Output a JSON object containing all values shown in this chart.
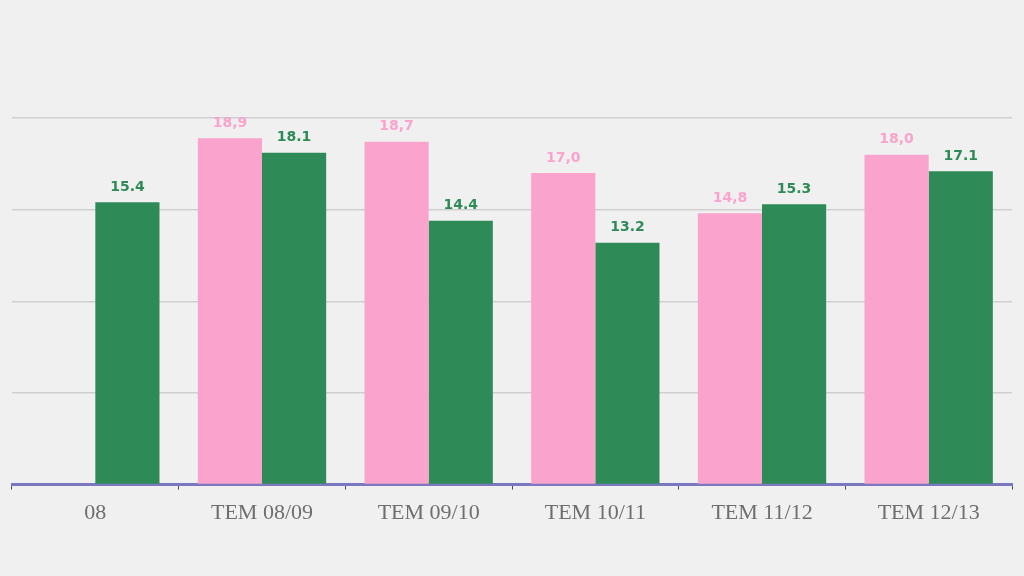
{
  "chart_data": {
    "type": "bar",
    "categories": [
      "08",
      "TEM 08/09",
      "TEM 09/10",
      "TEM 10/11",
      "TEM 11/12",
      "TEM 12/13"
    ],
    "series": [
      {
        "color": "#f9a3cd",
        "values": [
          null,
          18.9,
          18.7,
          17.0,
          14.8,
          18.0
        ],
        "value_labels": [
          null,
          "18,9",
          "18,7",
          "17,0",
          "14,8",
          "18,0"
        ]
      },
      {
        "color": "#2e8b57",
        "values": [
          15.4,
          18.1,
          14.4,
          13.2,
          15.3,
          17.1
        ],
        "value_labels": [
          "15.4",
          "18.1",
          "14.4",
          "13.2",
          "15.3",
          "17.1"
        ]
      }
    ],
    "ylim": [
      0,
      20
    ],
    "yticks": [
      0,
      {
        "value": 5,
        "label": null
      },
      {
        "value": 10,
        "label": null
      },
      {
        "value": 15,
        "label": null
      },
      {
        "value": 20,
        "label": null
      }
    ],
    "grid": "y",
    "tick_labels": "x"
  }
}
